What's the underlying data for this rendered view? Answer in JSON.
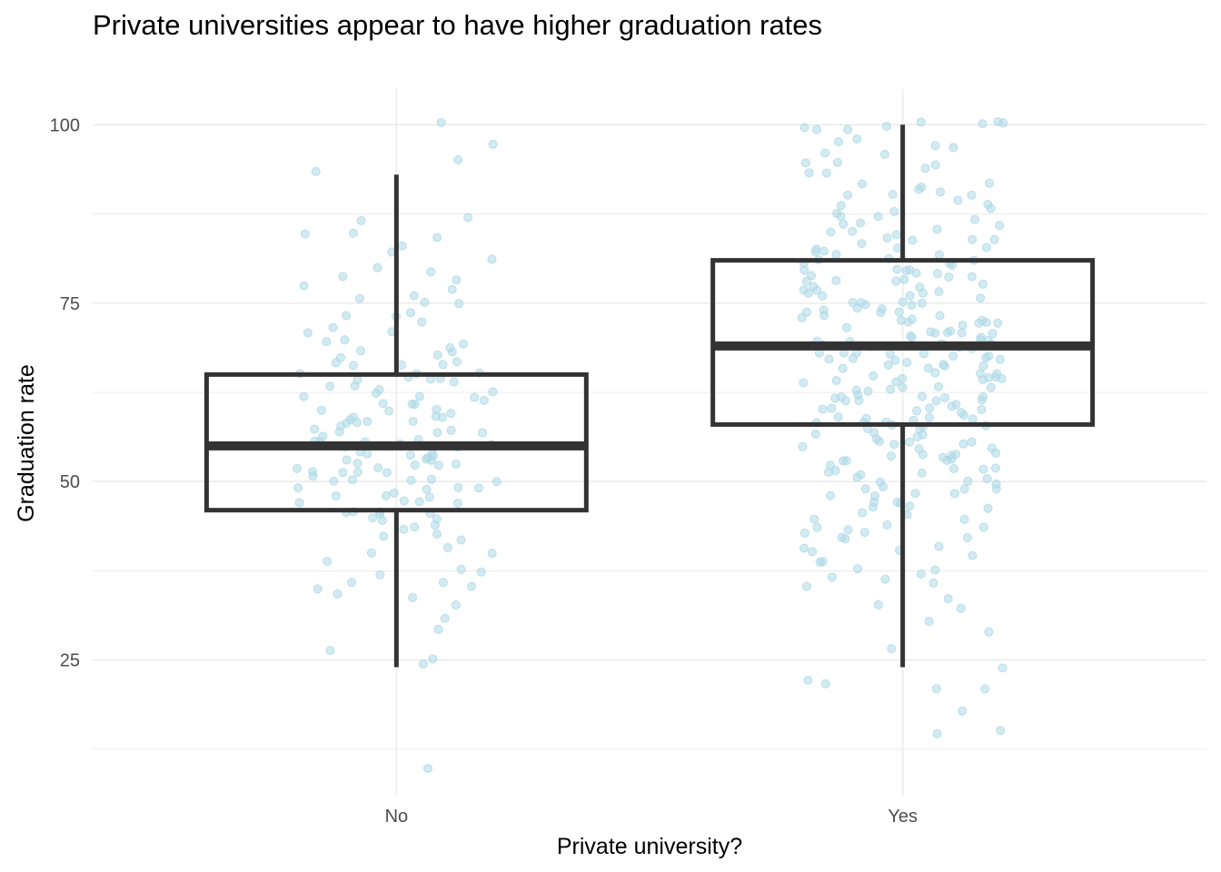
{
  "chart_data": {
    "type": "boxplot",
    "title": "Private universities appear to have higher graduation rates",
    "xlabel": "Private university?",
    "ylabel": "Graduation rate",
    "categories": [
      "No",
      "Yes"
    ],
    "ylim": [
      6,
      105
    ],
    "yticks": [
      25,
      50,
      75,
      100
    ],
    "ytick_labels": [
      "25",
      "50",
      "75",
      "100"
    ],
    "grid": true,
    "legend": "none",
    "colors": {
      "points": "#add8e6",
      "box": "#333333",
      "grid": "#ebebeb"
    },
    "boxes": [
      {
        "category": "No",
        "whisker_low": 24,
        "q1": 46,
        "median": 55,
        "q3": 65,
        "whisker_high": 93
      },
      {
        "category": "Yes",
        "whisker_low": 24,
        "q1": 58,
        "median": 69,
        "q3": 81,
        "whisker_high": 100
      }
    ],
    "points": [
      {
        "category": "No",
        "values": [
          10,
          24,
          25,
          26,
          29,
          31,
          33,
          34,
          34,
          35,
          35,
          36,
          36,
          37,
          37,
          38,
          39,
          40,
          40,
          41,
          42,
          42,
          43,
          43,
          44,
          44,
          45,
          45,
          45,
          45,
          46,
          46,
          46,
          46,
          47,
          47,
          47,
          47,
          48,
          48,
          48,
          48,
          49,
          49,
          49,
          49,
          50,
          50,
          50,
          50,
          50,
          51,
          51,
          51,
          51,
          51,
          52,
          52,
          52,
          52,
          52,
          53,
          53,
          53,
          53,
          53,
          54,
          54,
          54,
          54,
          54,
          55,
          55,
          55,
          55,
          55,
          55,
          56,
          56,
          56,
          56,
          56,
          57,
          57,
          57,
          57,
          57,
          58,
          58,
          58,
          58,
          58,
          59,
          59,
          59,
          59,
          60,
          60,
          60,
          60,
          61,
          61,
          61,
          61,
          62,
          62,
          62,
          62,
          63,
          63,
          63,
          63,
          64,
          64,
          64,
          64,
          65,
          65,
          65,
          65,
          66,
          66,
          66,
          67,
          67,
          67,
          68,
          68,
          68,
          69,
          69,
          70,
          70,
          71,
          71,
          72,
          72,
          73,
          73,
          74,
          75,
          75,
          76,
          76,
          77,
          77,
          78,
          79,
          79,
          80,
          81,
          82,
          83,
          84,
          85,
          85,
          87,
          87,
          93,
          95,
          97,
          100
        ]
      },
      {
        "category": "Yes",
        "values": [
          15,
          15,
          18,
          21,
          21,
          22,
          22,
          24,
          27,
          29,
          30,
          32,
          33,
          34,
          35,
          36,
          36,
          37,
          37,
          38,
          38,
          39,
          39,
          40,
          40,
          40,
          41,
          41,
          42,
          42,
          42,
          43,
          43,
          43,
          44,
          44,
          44,
          45,
          45,
          45,
          46,
          46,
          46,
          47,
          47,
          47,
          47,
          48,
          48,
          48,
          48,
          49,
          49,
          49,
          49,
          50,
          50,
          50,
          50,
          51,
          51,
          51,
          51,
          52,
          52,
          52,
          52,
          52,
          53,
          53,
          53,
          53,
          53,
          54,
          54,
          54,
          54,
          54,
          55,
          55,
          55,
          55,
          55,
          56,
          56,
          56,
          56,
          56,
          57,
          57,
          57,
          57,
          57,
          58,
          58,
          58,
          58,
          58,
          58,
          59,
          59,
          59,
          59,
          59,
          59,
          60,
          60,
          60,
          60,
          60,
          60,
          61,
          61,
          61,
          61,
          61,
          61,
          62,
          62,
          62,
          62,
          62,
          62,
          63,
          63,
          63,
          63,
          63,
          63,
          64,
          64,
          64,
          64,
          64,
          64,
          65,
          65,
          65,
          65,
          65,
          65,
          66,
          66,
          66,
          66,
          66,
          66,
          67,
          67,
          67,
          67,
          67,
          67,
          68,
          68,
          68,
          68,
          68,
          68,
          68,
          69,
          69,
          69,
          69,
          69,
          69,
          69,
          70,
          70,
          70,
          70,
          70,
          70,
          70,
          71,
          71,
          71,
          71,
          71,
          71,
          72,
          72,
          72,
          72,
          72,
          72,
          73,
          73,
          73,
          73,
          73,
          73,
          74,
          74,
          74,
          74,
          74,
          74,
          75,
          75,
          75,
          75,
          75,
          75,
          76,
          76,
          76,
          76,
          76,
          77,
          77,
          77,
          77,
          77,
          78,
          78,
          78,
          78,
          78,
          79,
          79,
          79,
          79,
          79,
          80,
          80,
          80,
          80,
          80,
          81,
          81,
          81,
          81,
          81,
          82,
          82,
          82,
          82,
          83,
          83,
          83,
          83,
          84,
          84,
          84,
          84,
          85,
          85,
          85,
          85,
          86,
          86,
          86,
          87,
          87,
          87,
          88,
          88,
          88,
          89,
          89,
          89,
          90,
          90,
          90,
          91,
          91,
          91,
          92,
          92,
          93,
          93,
          94,
          94,
          95,
          95,
          96,
          96,
          97,
          97,
          98,
          98,
          99,
          99,
          100,
          100,
          100,
          100,
          100,
          100
        ]
      }
    ]
  }
}
